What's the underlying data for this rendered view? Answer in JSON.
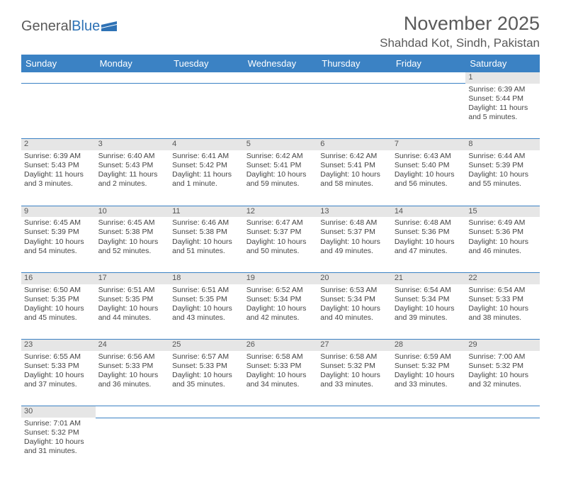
{
  "logo": {
    "part1": "General",
    "part2": "Blue"
  },
  "title": "November 2025",
  "location": "Shahdad Kot, Sindh, Pakistan",
  "colors": {
    "header_bg": "#3b82c4",
    "header_text": "#ffffff",
    "daynum_bg": "#e6e6e6",
    "border": "#3b82c4",
    "text": "#444444",
    "logo_gray": "#5a5a5a",
    "logo_blue": "#2e72b5"
  },
  "weekdays": [
    "Sunday",
    "Monday",
    "Tuesday",
    "Wednesday",
    "Thursday",
    "Friday",
    "Saturday"
  ],
  "weeks": [
    {
      "nums": [
        "",
        "",
        "",
        "",
        "",
        "",
        "1"
      ],
      "cells": [
        null,
        null,
        null,
        null,
        null,
        null,
        {
          "sr": "Sunrise: 6:39 AM",
          "ss": "Sunset: 5:44 PM",
          "dl1": "Daylight: 11 hours",
          "dl2": "and 5 minutes."
        }
      ]
    },
    {
      "nums": [
        "2",
        "3",
        "4",
        "5",
        "6",
        "7",
        "8"
      ],
      "cells": [
        {
          "sr": "Sunrise: 6:39 AM",
          "ss": "Sunset: 5:43 PM",
          "dl1": "Daylight: 11 hours",
          "dl2": "and 3 minutes."
        },
        {
          "sr": "Sunrise: 6:40 AM",
          "ss": "Sunset: 5:43 PM",
          "dl1": "Daylight: 11 hours",
          "dl2": "and 2 minutes."
        },
        {
          "sr": "Sunrise: 6:41 AM",
          "ss": "Sunset: 5:42 PM",
          "dl1": "Daylight: 11 hours",
          "dl2": "and 1 minute."
        },
        {
          "sr": "Sunrise: 6:42 AM",
          "ss": "Sunset: 5:41 PM",
          "dl1": "Daylight: 10 hours",
          "dl2": "and 59 minutes."
        },
        {
          "sr": "Sunrise: 6:42 AM",
          "ss": "Sunset: 5:41 PM",
          "dl1": "Daylight: 10 hours",
          "dl2": "and 58 minutes."
        },
        {
          "sr": "Sunrise: 6:43 AM",
          "ss": "Sunset: 5:40 PM",
          "dl1": "Daylight: 10 hours",
          "dl2": "and 56 minutes."
        },
        {
          "sr": "Sunrise: 6:44 AM",
          "ss": "Sunset: 5:39 PM",
          "dl1": "Daylight: 10 hours",
          "dl2": "and 55 minutes."
        }
      ]
    },
    {
      "nums": [
        "9",
        "10",
        "11",
        "12",
        "13",
        "14",
        "15"
      ],
      "cells": [
        {
          "sr": "Sunrise: 6:45 AM",
          "ss": "Sunset: 5:39 PM",
          "dl1": "Daylight: 10 hours",
          "dl2": "and 54 minutes."
        },
        {
          "sr": "Sunrise: 6:45 AM",
          "ss": "Sunset: 5:38 PM",
          "dl1": "Daylight: 10 hours",
          "dl2": "and 52 minutes."
        },
        {
          "sr": "Sunrise: 6:46 AM",
          "ss": "Sunset: 5:38 PM",
          "dl1": "Daylight: 10 hours",
          "dl2": "and 51 minutes."
        },
        {
          "sr": "Sunrise: 6:47 AM",
          "ss": "Sunset: 5:37 PM",
          "dl1": "Daylight: 10 hours",
          "dl2": "and 50 minutes."
        },
        {
          "sr": "Sunrise: 6:48 AM",
          "ss": "Sunset: 5:37 PM",
          "dl1": "Daylight: 10 hours",
          "dl2": "and 49 minutes."
        },
        {
          "sr": "Sunrise: 6:48 AM",
          "ss": "Sunset: 5:36 PM",
          "dl1": "Daylight: 10 hours",
          "dl2": "and 47 minutes."
        },
        {
          "sr": "Sunrise: 6:49 AM",
          "ss": "Sunset: 5:36 PM",
          "dl1": "Daylight: 10 hours",
          "dl2": "and 46 minutes."
        }
      ]
    },
    {
      "nums": [
        "16",
        "17",
        "18",
        "19",
        "20",
        "21",
        "22"
      ],
      "cells": [
        {
          "sr": "Sunrise: 6:50 AM",
          "ss": "Sunset: 5:35 PM",
          "dl1": "Daylight: 10 hours",
          "dl2": "and 45 minutes."
        },
        {
          "sr": "Sunrise: 6:51 AM",
          "ss": "Sunset: 5:35 PM",
          "dl1": "Daylight: 10 hours",
          "dl2": "and 44 minutes."
        },
        {
          "sr": "Sunrise: 6:51 AM",
          "ss": "Sunset: 5:35 PM",
          "dl1": "Daylight: 10 hours",
          "dl2": "and 43 minutes."
        },
        {
          "sr": "Sunrise: 6:52 AM",
          "ss": "Sunset: 5:34 PM",
          "dl1": "Daylight: 10 hours",
          "dl2": "and 42 minutes."
        },
        {
          "sr": "Sunrise: 6:53 AM",
          "ss": "Sunset: 5:34 PM",
          "dl1": "Daylight: 10 hours",
          "dl2": "and 40 minutes."
        },
        {
          "sr": "Sunrise: 6:54 AM",
          "ss": "Sunset: 5:34 PM",
          "dl1": "Daylight: 10 hours",
          "dl2": "and 39 minutes."
        },
        {
          "sr": "Sunrise: 6:54 AM",
          "ss": "Sunset: 5:33 PM",
          "dl1": "Daylight: 10 hours",
          "dl2": "and 38 minutes."
        }
      ]
    },
    {
      "nums": [
        "23",
        "24",
        "25",
        "26",
        "27",
        "28",
        "29"
      ],
      "cells": [
        {
          "sr": "Sunrise: 6:55 AM",
          "ss": "Sunset: 5:33 PM",
          "dl1": "Daylight: 10 hours",
          "dl2": "and 37 minutes."
        },
        {
          "sr": "Sunrise: 6:56 AM",
          "ss": "Sunset: 5:33 PM",
          "dl1": "Daylight: 10 hours",
          "dl2": "and 36 minutes."
        },
        {
          "sr": "Sunrise: 6:57 AM",
          "ss": "Sunset: 5:33 PM",
          "dl1": "Daylight: 10 hours",
          "dl2": "and 35 minutes."
        },
        {
          "sr": "Sunrise: 6:58 AM",
          "ss": "Sunset: 5:33 PM",
          "dl1": "Daylight: 10 hours",
          "dl2": "and 34 minutes."
        },
        {
          "sr": "Sunrise: 6:58 AM",
          "ss": "Sunset: 5:32 PM",
          "dl1": "Daylight: 10 hours",
          "dl2": "and 33 minutes."
        },
        {
          "sr": "Sunrise: 6:59 AM",
          "ss": "Sunset: 5:32 PM",
          "dl1": "Daylight: 10 hours",
          "dl2": "and 33 minutes."
        },
        {
          "sr": "Sunrise: 7:00 AM",
          "ss": "Sunset: 5:32 PM",
          "dl1": "Daylight: 10 hours",
          "dl2": "and 32 minutes."
        }
      ]
    },
    {
      "nums": [
        "30",
        "",
        "",
        "",
        "",
        "",
        ""
      ],
      "cells": [
        {
          "sr": "Sunrise: 7:01 AM",
          "ss": "Sunset: 5:32 PM",
          "dl1": "Daylight: 10 hours",
          "dl2": "and 31 minutes."
        },
        null,
        null,
        null,
        null,
        null,
        null
      ]
    }
  ]
}
